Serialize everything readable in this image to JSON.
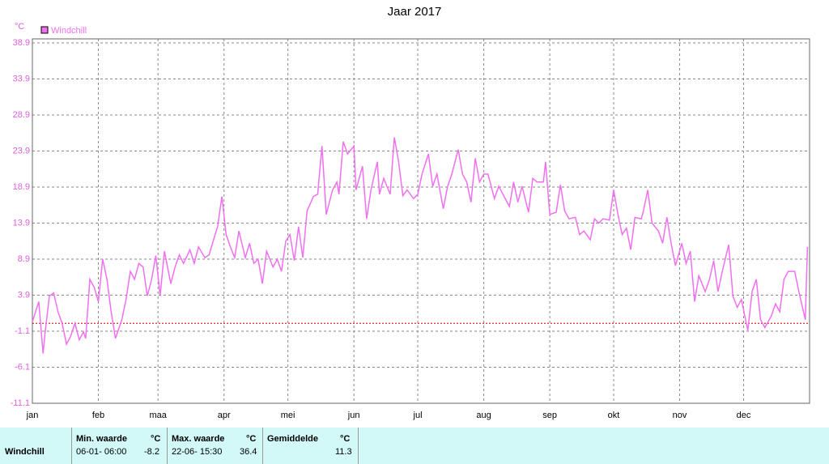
{
  "chart_data": {
    "type": "line",
    "title": "Jaar 2017",
    "y_unit": "°C",
    "xlim": [
      0,
      365
    ],
    "xticks": [
      {
        "value": 0,
        "label": "jan"
      },
      {
        "value": 31,
        "label": "feb"
      },
      {
        "value": 59,
        "label": "maa"
      },
      {
        "value": 90,
        "label": "apr"
      },
      {
        "value": 120,
        "label": "mei"
      },
      {
        "value": 151,
        "label": "jun"
      },
      {
        "value": 181,
        "label": "jul"
      },
      {
        "value": 212,
        "label": "aug"
      },
      {
        "value": 243,
        "label": "sep"
      },
      {
        "value": 273,
        "label": "okt"
      },
      {
        "value": 304,
        "label": "nov"
      },
      {
        "value": 334,
        "label": "dec"
      }
    ],
    "ylim": [
      -11.1,
      38.9
    ],
    "yticks": [
      -11.1,
      -6.1,
      -1.1,
      3.9,
      8.9,
      13.9,
      18.9,
      23.9,
      28.9,
      33.9,
      38.9
    ],
    "grid": true,
    "legend": "top-left",
    "reference_line": {
      "value": 0,
      "color": "#c00000"
    },
    "x": [
      0,
      3,
      5,
      6,
      8,
      10,
      12,
      14,
      16,
      18,
      20,
      22,
      24,
      25,
      27,
      29,
      31,
      33,
      35,
      37,
      39,
      42,
      44,
      46,
      48,
      50,
      52,
      54,
      56,
      58,
      60,
      62,
      65,
      67,
      69,
      71,
      74,
      76,
      78,
      81,
      83,
      86,
      87,
      89,
      91,
      93,
      95,
      97,
      100,
      102,
      104,
      106,
      108,
      110,
      113,
      115,
      117,
      119,
      121,
      123,
      125,
      127,
      129,
      132,
      134,
      136,
      138,
      141,
      143,
      144,
      146,
      148,
      151,
      152,
      155,
      157,
      159,
      162,
      163,
      165,
      168,
      170,
      172,
      174,
      176,
      179,
      181,
      183,
      186,
      188,
      190,
      193,
      195,
      197,
      200,
      202,
      204,
      206,
      208,
      210,
      212,
      214,
      217,
      219,
      221,
      224,
      226,
      228,
      230,
      233,
      235,
      237,
      240,
      241,
      243,
      246,
      248,
      250,
      252,
      255,
      257,
      259,
      262,
      264,
      266,
      268,
      271,
      273,
      275,
      277,
      279,
      281,
      283,
      286,
      287,
      289,
      291,
      294,
      296,
      298,
      300,
      302,
      305,
      307,
      309,
      311,
      313,
      316,
      318,
      320,
      322,
      324,
      327,
      329,
      331,
      333,
      336,
      338,
      340,
      342,
      344,
      347,
      349,
      351,
      353,
      355,
      358,
      360,
      363,
      364
    ],
    "series": [
      {
        "name": "Windchill",
        "color": "#f070f0",
        "values": [
          0.2,
          3.0,
          -4.2,
          -1.2,
          3.8,
          4.2,
          1.6,
          0,
          -2.9,
          -1.8,
          0,
          -2.3,
          -1.2,
          -2.1,
          6.1,
          5.0,
          3.0,
          8.9,
          6.1,
          1.6,
          -2.1,
          0.5,
          3.3,
          7.2,
          6.1,
          8.3,
          7.8,
          3.8,
          6.1,
          9.4,
          3.8,
          10.0,
          5.5,
          7.8,
          9.5,
          8.3,
          10.2,
          8.3,
          10.6,
          9.1,
          9.5,
          12.5,
          13.4,
          17.6,
          12.3,
          10.6,
          9.1,
          12.8,
          9.1,
          11.1,
          8.3,
          8.9,
          5.5,
          10.0,
          7.8,
          8.9,
          7.2,
          11.4,
          12.3,
          8.7,
          13.4,
          9.1,
          15.6,
          17.6,
          17.9,
          24.6,
          15.1,
          18.5,
          19.6,
          17.9,
          25.2,
          23.5,
          24.6,
          18.5,
          21.8,
          14.5,
          18.5,
          22.4,
          17.9,
          20.1,
          17.9,
          25.8,
          22.4,
          17.7,
          18.5,
          17.3,
          17.9,
          20.7,
          23.5,
          19.0,
          20.7,
          15.9,
          19.0,
          20.7,
          24.1,
          20.7,
          19.6,
          16.8,
          22.9,
          19.6,
          20.7,
          20.7,
          17.3,
          19.0,
          17.9,
          16.2,
          19.6,
          16.8,
          19.0,
          15.4,
          20.1,
          19.6,
          19.6,
          22.4,
          15.1,
          15.4,
          19.2,
          15.6,
          14.5,
          14.7,
          12.3,
          12.8,
          11.6,
          14.5,
          13.9,
          14.5,
          14.3,
          18.5,
          15.1,
          12.3,
          13.2,
          10.2,
          14.7,
          14.5,
          15.6,
          18.5,
          13.9,
          12.8,
          11.1,
          14.7,
          11.1,
          8.0,
          11.1,
          8.3,
          10.0,
          3.0,
          6.6,
          4.4,
          6.1,
          8.7,
          4.4,
          7.2,
          10.9,
          3.8,
          2.2,
          3.3,
          -1.0,
          4.4,
          6.1,
          0.5,
          -0.6,
          1.0,
          2.7,
          1.6,
          6.1,
          7.2,
          7.2,
          4.4,
          0.5,
          10.6
        ]
      }
    ]
  },
  "summary_table": {
    "headers": [
      "Min. waarde",
      "°C",
      "Max. waarde",
      "°C",
      "Gemiddelde",
      "°C"
    ],
    "rows": [
      [
        "Windchill",
        "06-01- 06:00",
        "-8.2",
        "22-06- 15:30",
        "36.4",
        "11.3"
      ]
    ]
  }
}
